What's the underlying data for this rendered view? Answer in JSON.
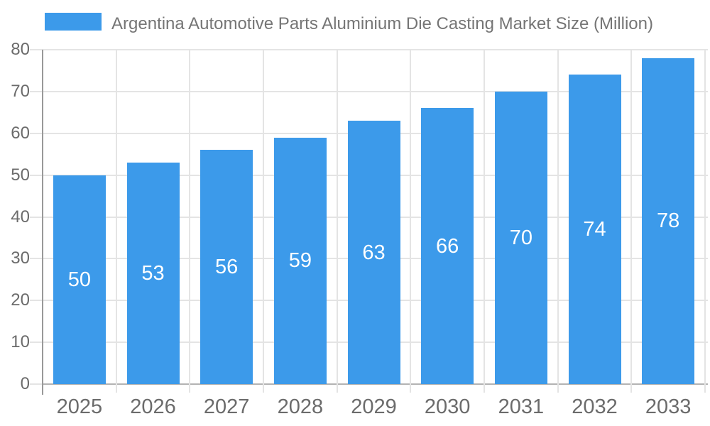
{
  "chart_data": {
    "type": "bar",
    "title": "Argentina Automotive Parts Aluminium Die Casting Market Size (Million)",
    "series_name": "Argentina Automotive Parts Aluminium Die Casting Market Size (Million)",
    "categories": [
      "2025",
      "2026",
      "2027",
      "2028",
      "2029",
      "2030",
      "2031",
      "2032",
      "2033"
    ],
    "values": [
      50,
      53,
      56,
      59,
      63,
      66,
      70,
      74,
      78
    ],
    "value_labels_shown": [
      50,
      53,
      56,
      59,
      63,
      66,
      70,
      74,
      78
    ],
    "xlabel": "",
    "ylabel": "",
    "ylim": [
      0,
      80
    ],
    "yticks": [
      0,
      10,
      20,
      30,
      40,
      50,
      60,
      70,
      80
    ],
    "grid": true,
    "legend_position": "top-left",
    "value_label_position": "inside-center"
  },
  "colors": {
    "bar": "#3C9AEA",
    "gridline": "#e4e4e4",
    "baseline": "#b3b3b3",
    "y_axis_line": "#999999",
    "title_text": "#757575",
    "tick_text": "#6b6b6b",
    "value_text": "#ffffff",
    "background": "#ffffff"
  }
}
